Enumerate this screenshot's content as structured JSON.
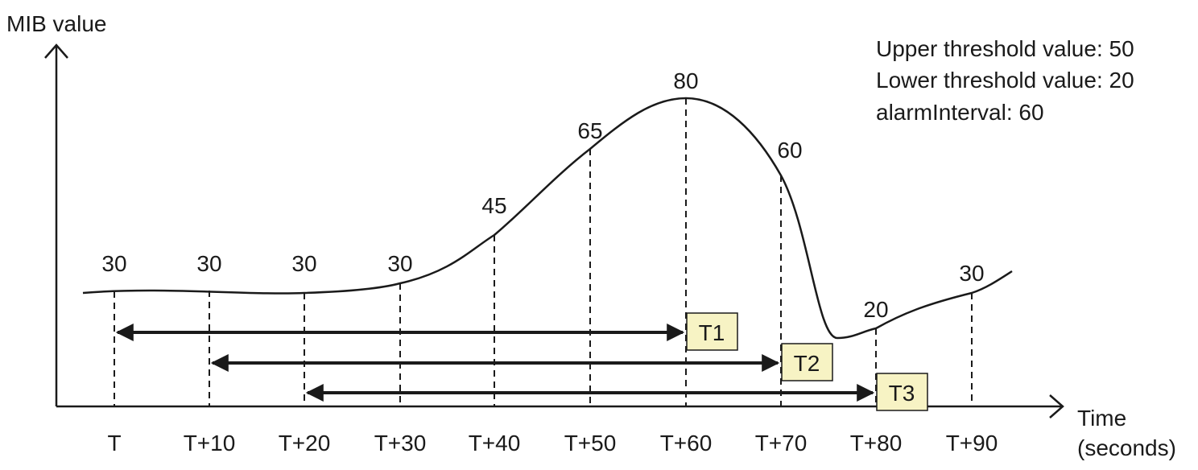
{
  "y_axis_label": "MIB value",
  "x_axis_label_line1": "Time",
  "x_axis_label_line2": "(seconds)",
  "legend": [
    "Upper threshold value: 50",
    "Lower threshold value: 20",
    "alarmInterval: 60"
  ],
  "samples": [
    {
      "time": "T",
      "value": 30
    },
    {
      "time": "T+10",
      "value": 30
    },
    {
      "time": "T+20",
      "value": 30
    },
    {
      "time": "T+30",
      "value": 30
    },
    {
      "time": "T+40",
      "value": 45
    },
    {
      "time": "T+50",
      "value": 65
    },
    {
      "time": "T+60",
      "value": 80
    },
    {
      "time": "T+70",
      "value": 60
    },
    {
      "time": "T+80",
      "value": 20
    },
    {
      "time": "T+90",
      "value": 30
    }
  ],
  "intervals": [
    {
      "label": "T1",
      "start_index": 0,
      "end_index": 6
    },
    {
      "label": "T2",
      "start_index": 1,
      "end_index": 7
    },
    {
      "label": "T3",
      "start_index": 2,
      "end_index": 8
    }
  ]
}
